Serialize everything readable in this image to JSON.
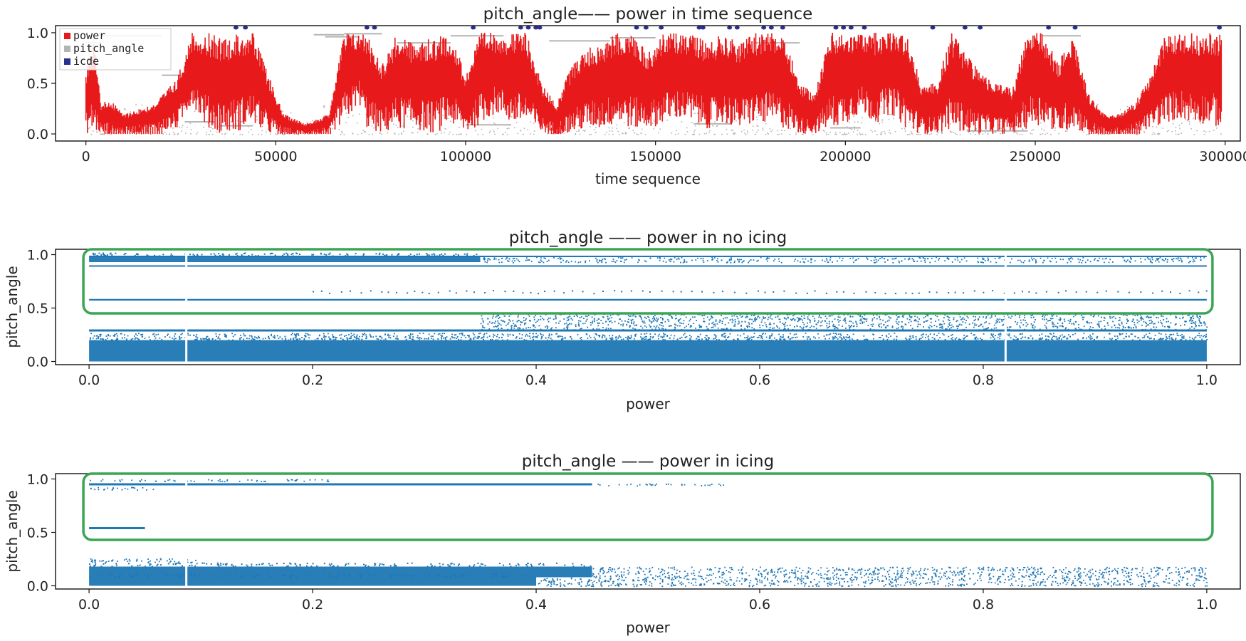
{
  "chart_data": [
    {
      "type": "scatter",
      "title": "pitch_angle—— power in time sequence",
      "xlabel": "time sequence",
      "ylabel": "",
      "xlim": [
        -8000,
        304000
      ],
      "ylim": [
        -0.07,
        1.07
      ],
      "xticks": [
        0,
        50000,
        100000,
        150000,
        200000,
        250000,
        300000
      ],
      "xtick_labels": [
        "0",
        "50000",
        "100000",
        "150000",
        "200000",
        "250000",
        "300000"
      ],
      "yticks": [
        0.0,
        0.5,
        1.0
      ],
      "ytick_labels": [
        "0.0",
        "0.5",
        "1.0"
      ],
      "legend_position": "top-left",
      "legend": [
        {
          "name": "power",
          "color": "#e8191b"
        },
        {
          "name": "pitch_angle",
          "color": "#b4b4b4"
        },
        {
          "name": "icde",
          "color": "#2b2f8f"
        }
      ],
      "series": [
        {
          "name": "power",
          "kind": "dense-line",
          "color": "#e8191b",
          "x": [
            0,
            2000,
            4000,
            6000,
            10000,
            18000,
            24000,
            28000,
            32000,
            36000,
            40000,
            44000,
            48000,
            52000,
            58000,
            64000,
            68000,
            72000,
            74000,
            78000,
            82000,
            86000,
            92000,
            96000,
            100000,
            104000,
            108000,
            112000,
            116000,
            120000,
            124000,
            128000,
            132000,
            136000,
            140000,
            144000,
            148000,
            152000,
            156000,
            160000,
            164000,
            168000,
            172000,
            176000,
            180000,
            184000,
            188000,
            192000,
            196000,
            200000,
            204000,
            208000,
            212000,
            216000,
            220000,
            224000,
            228000,
            232000,
            236000,
            240000,
            244000,
            248000,
            252000,
            256000,
            260000,
            264000,
            268000,
            272000,
            276000,
            280000,
            284000,
            288000,
            292000,
            296000,
            299000
          ],
          "y_high": [
            0.6,
            1.0,
            0.3,
            0.35,
            0.2,
            0.3,
            0.55,
            1.0,
            1.0,
            0.95,
            1.0,
            1.0,
            0.6,
            0.2,
            0.1,
            0.2,
            1.0,
            1.0,
            1.0,
            0.7,
            1.0,
            0.9,
            0.95,
            1.0,
            0.6,
            1.0,
            1.0,
            1.0,
            1.0,
            0.5,
            0.3,
            0.7,
            0.85,
            0.9,
            1.0,
            1.0,
            0.8,
            1.0,
            1.0,
            1.0,
            0.9,
            1.0,
            0.9,
            1.0,
            1.0,
            1.0,
            0.5,
            0.4,
            1.0,
            1.0,
            1.0,
            1.0,
            1.0,
            1.0,
            0.5,
            0.5,
            1.0,
            0.8,
            0.6,
            0.5,
            0.45,
            1.0,
            1.0,
            0.7,
            1.0,
            0.4,
            0.2,
            0.2,
            0.3,
            0.55,
            0.95,
            1.0,
            1.0,
            1.0,
            1.0
          ],
          "y_low": [
            0.0,
            0.02,
            0.0,
            0.0,
            0.0,
            0.02,
            0.05,
            0.3,
            0.05,
            0.0,
            0.02,
            0.1,
            0.0,
            0.0,
            0.0,
            0.0,
            0.1,
            0.3,
            0.05,
            0.0,
            0.05,
            0.05,
            0.0,
            0.1,
            0.0,
            0.1,
            0.2,
            0.1,
            0.1,
            0.0,
            0.0,
            0.0,
            0.05,
            0.05,
            0.1,
            0.05,
            0.05,
            0.1,
            0.15,
            0.1,
            0.05,
            0.1,
            0.05,
            0.1,
            0.1,
            0.05,
            0.0,
            0.0,
            0.05,
            0.1,
            0.2,
            0.1,
            0.2,
            0.05,
            0.0,
            0.0,
            0.05,
            0.0,
            0.0,
            0.0,
            0.0,
            0.05,
            0.1,
            0.0,
            0.05,
            0.0,
            0.0,
            0.0,
            0.0,
            0.05,
            0.1,
            0.15,
            0.1,
            0.1,
            0.05
          ]
        },
        {
          "name": "pitch_angle",
          "kind": "segments",
          "color": "#b4b4b4",
          "segments": [
            {
              "x0": 0,
              "x1": 4000,
              "y": 0.9
            },
            {
              "x0": 4000,
              "x1": 20000,
              "y": 0.97
            },
            {
              "x0": 20000,
              "x1": 34000,
              "y": 0.58
            },
            {
              "x0": 26000,
              "x1": 34000,
              "y": 0.12
            },
            {
              "x0": 35000,
              "x1": 44000,
              "y": 0.08
            },
            {
              "x0": 60000,
              "x1": 68000,
              "y": 0.98
            },
            {
              "x0": 63000,
              "x1": 72000,
              "y": 0.96
            },
            {
              "x0": 68000,
              "x1": 78000,
              "y": 0.99
            },
            {
              "x0": 82000,
              "x1": 96000,
              "y": 0.9
            },
            {
              "x0": 96000,
              "x1": 110000,
              "y": 0.97
            },
            {
              "x0": 100000,
              "x1": 112000,
              "y": 0.09
            },
            {
              "x0": 122000,
              "x1": 138000,
              "y": 0.92
            },
            {
              "x0": 138000,
              "x1": 150000,
              "y": 0.95
            },
            {
              "x0": 160000,
              "x1": 170000,
              "y": 0.1
            },
            {
              "x0": 176000,
              "x1": 188000,
              "y": 0.9
            },
            {
              "x0": 196000,
              "x1": 204000,
              "y": 0.06
            },
            {
              "x0": 232000,
              "x1": 248000,
              "y": 0.03
            },
            {
              "x0": 252000,
              "x1": 262000,
              "y": 0.97
            }
          ],
          "y_spread": [
            0.0,
            0.3
          ]
        },
        {
          "name": "icde",
          "kind": "points",
          "color": "#2b2f8f",
          "x": [
            39500,
            42000,
            74000,
            76000,
            102000,
            114500,
            116500,
            118500,
            119500,
            145000,
            147500,
            151500,
            161500,
            162500,
            169500,
            171500,
            178500,
            180500,
            183500,
            197500,
            199500,
            201500,
            205000,
            223000,
            231500,
            235500,
            253500,
            260500,
            298500
          ],
          "y": [
            1.08,
            1.08,
            1.08,
            1.08,
            1.08,
            1.08,
            1.08,
            1.08,
            1.08,
            1.08,
            1.08,
            1.08,
            1.08,
            1.08,
            1.08,
            1.08,
            1.08,
            1.08,
            1.08,
            1.08,
            1.08,
            1.08,
            1.08,
            1.08,
            1.08,
            1.08,
            1.08,
            1.08,
            1.08
          ]
        }
      ]
    },
    {
      "type": "scatter",
      "title": "pitch_angle —— power in no icing",
      "xlabel": "power",
      "ylabel": "pitch_angle",
      "xlim": [
        -0.03,
        1.03
      ],
      "ylim": [
        -0.03,
        1.05
      ],
      "xticks": [
        0.0,
        0.2,
        0.4,
        0.6,
        0.8,
        1.0
      ],
      "xtick_labels": [
        "0.0",
        "0.2",
        "0.4",
        "0.6",
        "0.8",
        "1.0"
      ],
      "yticks": [
        0.0,
        0.5,
        1.0
      ],
      "ytick_labels": [
        "0.0",
        "0.5",
        "1.0"
      ],
      "color": "#1f77b4",
      "highlight_box": {
        "x": [
          0.0,
          1.0
        ],
        "y": [
          0.45,
          1.05
        ],
        "color": "#3aa655"
      },
      "bands": [
        {
          "y0": 0.93,
          "y1": 0.98,
          "x0": 0.0,
          "x1": 0.35,
          "density": "solid"
        },
        {
          "y0": 0.93,
          "y1": 0.98,
          "x0": 0.35,
          "x1": 1.0,
          "density": "sparse"
        },
        {
          "y0": 0.985,
          "y1": 0.99,
          "x0": 0.0,
          "x1": 1.0,
          "density": "line"
        },
        {
          "y0": 0.89,
          "y1": 0.9,
          "x0": 0.0,
          "x1": 1.0,
          "density": "line"
        },
        {
          "y0": 0.64,
          "y1": 0.67,
          "x0": 0.2,
          "x1": 1.0,
          "density": "dots"
        },
        {
          "y0": 0.57,
          "y1": 0.585,
          "x0": 0.0,
          "x1": 1.0,
          "density": "line"
        },
        {
          "y0": 0.3,
          "y1": 0.45,
          "x0": 0.35,
          "x1": 1.0,
          "density": "sparse"
        },
        {
          "y0": 0.28,
          "y1": 0.3,
          "x0": 0.0,
          "x1": 1.0,
          "density": "line"
        },
        {
          "y0": 0.2,
          "y1": 0.27,
          "x0": 0.0,
          "x1": 1.0,
          "density": "sparse"
        },
        {
          "y0": 0.0,
          "y1": 0.2,
          "x0": 0.0,
          "x1": 1.0,
          "density": "solid"
        }
      ],
      "gaps_x": [
        0.087,
        0.82
      ]
    },
    {
      "type": "scatter",
      "title": "pitch_angle —— power in icing",
      "xlabel": "power",
      "ylabel": "pitch_angle",
      "xlim": [
        -0.03,
        1.03
      ],
      "ylim": [
        -0.03,
        1.05
      ],
      "xticks": [
        0.0,
        0.2,
        0.4,
        0.6,
        0.8,
        1.0
      ],
      "xtick_labels": [
        "0.0",
        "0.2",
        "0.4",
        "0.6",
        "0.8",
        "1.0"
      ],
      "yticks": [
        0.0,
        0.5,
        1.0
      ],
      "ytick_labels": [
        "0.0",
        "0.5",
        "1.0"
      ],
      "color": "#1f77b4",
      "highlight_box": {
        "x": [
          0.0,
          1.0
        ],
        "y": [
          0.43,
          1.05
        ],
        "color": "#3aa655"
      },
      "bands": [
        {
          "y0": 0.98,
          "y1": 1.0,
          "x0": 0.0,
          "x1": 0.22,
          "density": "sparse"
        },
        {
          "y0": 0.94,
          "y1": 0.96,
          "x0": 0.0,
          "x1": 0.45,
          "density": "line"
        },
        {
          "y0": 0.94,
          "y1": 0.96,
          "x0": 0.45,
          "x1": 0.57,
          "density": "sparse"
        },
        {
          "y0": 0.9,
          "y1": 0.93,
          "x0": 0.0,
          "x1": 0.06,
          "density": "sparse"
        },
        {
          "y0": 0.53,
          "y1": 0.55,
          "x0": 0.0,
          "x1": 0.05,
          "density": "line"
        },
        {
          "y0": 0.22,
          "y1": 0.26,
          "x0": 0.0,
          "x1": 0.1,
          "density": "sparse"
        },
        {
          "y0": 0.08,
          "y1": 0.18,
          "x0": 0.0,
          "x1": 0.45,
          "density": "solid"
        },
        {
          "y0": 0.08,
          "y1": 0.18,
          "x0": 0.45,
          "x1": 1.0,
          "density": "sparse"
        },
        {
          "y0": 0.0,
          "y1": 0.08,
          "x0": 0.0,
          "x1": 0.4,
          "density": "solid"
        },
        {
          "y0": 0.0,
          "y1": 0.08,
          "x0": 0.4,
          "x1": 1.0,
          "density": "sparse"
        }
      ],
      "gaps_x": [
        0.087
      ]
    }
  ]
}
